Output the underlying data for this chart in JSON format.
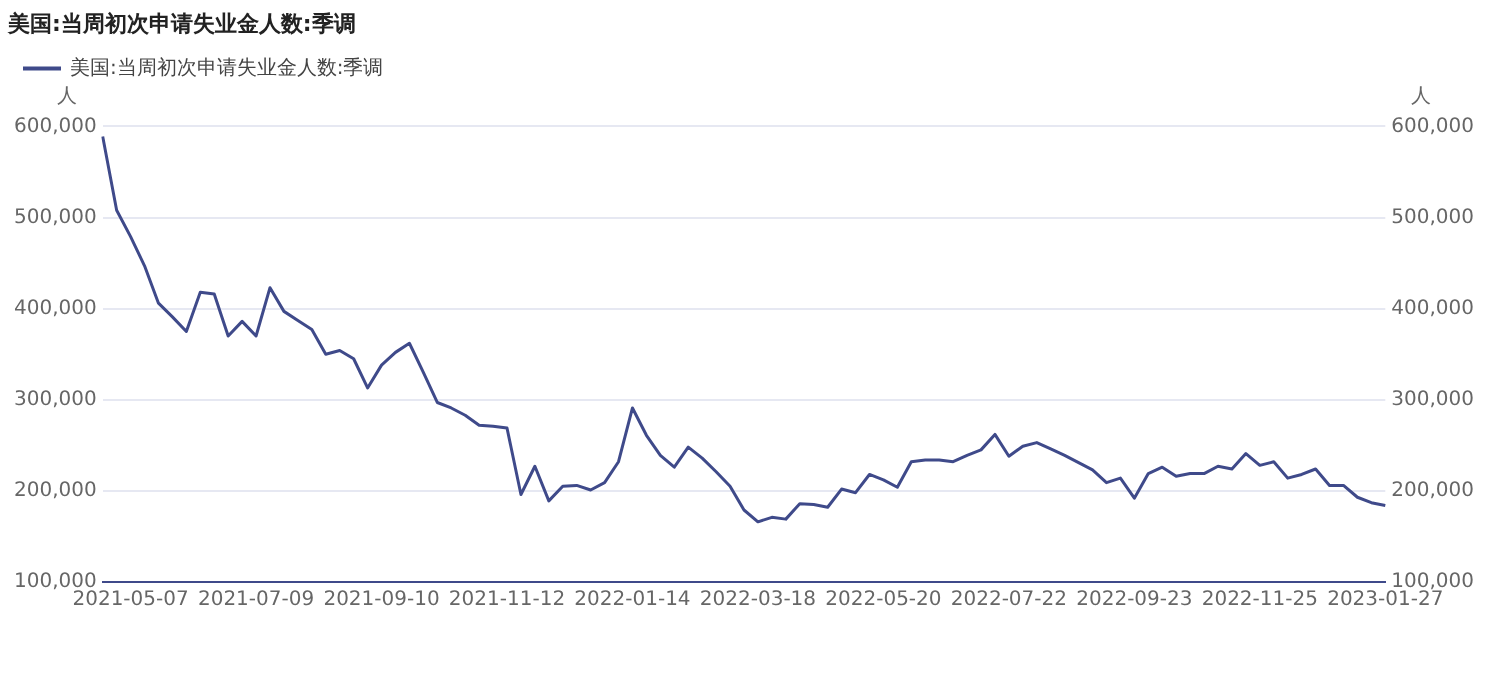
{
  "chart_data": {
    "type": "line",
    "title": "美国:当周初次申请失业金人数:季调",
    "ylabel": "人",
    "y2label": "人",
    "categories": [
      null,
      null,
      "2021-05-07",
      null,
      null,
      null,
      null,
      null,
      null,
      null,
      null,
      "2021-07-09",
      null,
      null,
      null,
      null,
      null,
      null,
      null,
      null,
      "2021-09-10",
      null,
      null,
      null,
      null,
      null,
      null,
      null,
      null,
      "2021-11-12",
      null,
      null,
      null,
      null,
      null,
      null,
      null,
      null,
      "2022-01-14",
      null,
      null,
      null,
      null,
      null,
      null,
      null,
      null,
      "2022-03-18",
      null,
      null,
      null,
      null,
      null,
      null,
      null,
      null,
      "2022-05-20",
      null,
      null,
      null,
      null,
      null,
      null,
      null,
      null,
      "2022-07-22",
      null,
      null,
      null,
      null,
      null,
      null,
      null,
      null,
      "2022-09-23",
      null,
      null,
      null,
      null,
      null,
      null,
      null,
      null,
      "2022-11-25",
      null,
      null,
      null,
      null,
      null,
      null,
      null,
      null,
      "2023-01-27"
    ],
    "series": [
      {
        "name": "美国:当周初次申请失业金人数:季调",
        "color": "#3f4a8a",
        "values": [
          589000,
          508000,
          479000,
          447000,
          406000,
          391000,
          375000,
          418000,
          416000,
          370000,
          386000,
          370000,
          423000,
          397000,
          387000,
          377000,
          350000,
          354000,
          345000,
          313000,
          338000,
          352000,
          362000,
          330000,
          297000,
          291000,
          283000,
          272000,
          271000,
          269000,
          196000,
          227000,
          189000,
          205000,
          206000,
          201000,
          209000,
          232000,
          291000,
          261000,
          239000,
          226000,
          248000,
          236000,
          221000,
          205000,
          179000,
          166000,
          171000,
          169000,
          186000,
          185000,
          182000,
          202000,
          198000,
          218000,
          212000,
          204000,
          232000,
          234000,
          234000,
          232000,
          239000,
          245000,
          262000,
          238000,
          249000,
          253000,
          246000,
          239000,
          231000,
          223000,
          209000,
          214000,
          192000,
          219000,
          226000,
          216000,
          219000,
          219000,
          227000,
          224000,
          241000,
          228000,
          232000,
          214000,
          218000,
          224000,
          206000,
          206000,
          193000,
          187000,
          184000
        ]
      }
    ],
    "ylim": [
      100000,
      600000
    ],
    "yticks": [
      {
        "value": 100000,
        "label": "100,000"
      },
      {
        "value": 200000,
        "label": "200,000"
      },
      {
        "value": 300000,
        "label": "300,000"
      },
      {
        "value": 400000,
        "label": "400,000"
      },
      {
        "value": 500000,
        "label": "500,000"
      },
      {
        "value": 600000,
        "label": "600,000"
      }
    ],
    "y2lim": [
      100000,
      600000
    ],
    "y2ticks": [
      {
        "value": 100000,
        "label": "100,000"
      },
      {
        "value": 200000,
        "label": "200,000"
      },
      {
        "value": 300000,
        "label": "300,000"
      },
      {
        "value": 400000,
        "label": "400,000"
      },
      {
        "value": 500000,
        "label": "500,000"
      },
      {
        "value": 600000,
        "label": "600,000"
      }
    ],
    "grid": "y",
    "legend": "top left",
    "marker": "none",
    "line_style": "solid"
  }
}
